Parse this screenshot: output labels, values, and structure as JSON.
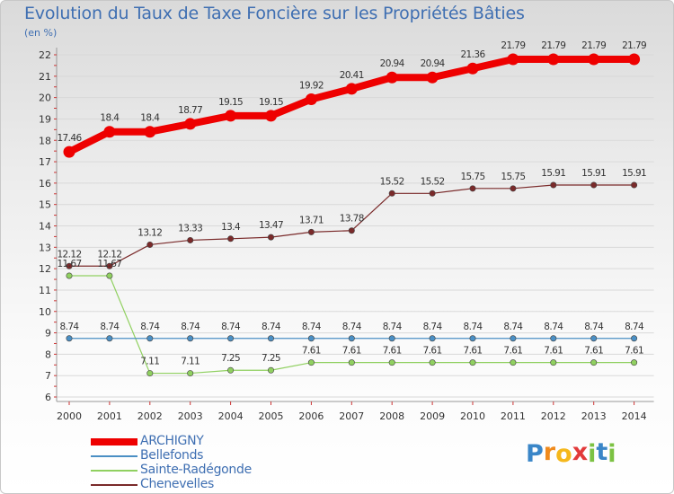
{
  "header": {
    "title": "Evolution du Taux de Taxe Foncière sur les Propriétés Bâties",
    "unit": "(en %)"
  },
  "logo": {
    "letters": [
      "P",
      "r",
      "o",
      "x",
      "i",
      "t",
      "i"
    ],
    "colors": [
      "#3a86c8",
      "#f08a1c",
      "#f5b81c",
      "#e23a3a",
      "#7cc243",
      "#3a86c8",
      "#7cc243"
    ]
  },
  "chart_data": {
    "type": "line",
    "title": "Evolution du Taux de Taxe Foncière sur les Propriétés Bâties",
    "ylabel": "(en %)",
    "xlabel": "",
    "ylim": [
      6,
      22
    ],
    "yticks": [
      "6",
      "7",
      "8",
      "9",
      "10",
      "11",
      "12",
      "13",
      "14",
      "15",
      "16",
      "17",
      "18",
      "19",
      "20",
      "21",
      "22"
    ],
    "categories": [
      "2000",
      "2001",
      "2002",
      "2003",
      "2004",
      "2005",
      "2006",
      "2007",
      "2008",
      "2009",
      "2010",
      "2011",
      "2012",
      "2013",
      "2014"
    ],
    "series": [
      {
        "name": "ARCHIGNY",
        "color": "#ee0000",
        "values": [
          17.46,
          18.4,
          18.4,
          18.77,
          19.15,
          19.15,
          19.92,
          20.41,
          20.94,
          20.94,
          21.36,
          21.79,
          21.79,
          21.79,
          21.79
        ],
        "labels": [
          "17.46",
          "18.4",
          "18.4",
          "18.77",
          "19.15",
          "19.15",
          "19.92",
          "20.41",
          "20.94",
          "20.94",
          "21.36",
          "21.79",
          "21.79",
          "21.79",
          "21.79"
        ]
      },
      {
        "name": "Bellefonds",
        "color": "#4a8fc4",
        "values": [
          8.74,
          8.74,
          8.74,
          8.74,
          8.74,
          8.74,
          8.74,
          8.74,
          8.74,
          8.74,
          8.74,
          8.74,
          8.74,
          8.74,
          8.74
        ],
        "labels": [
          "8.74",
          "8.74",
          "8.74",
          "8.74",
          "8.74",
          "8.74",
          "8.74",
          "8.74",
          "8.74",
          "8.74",
          "8.74",
          "8.74",
          "8.74",
          "8.74",
          "8.74"
        ]
      },
      {
        "name": "Sainte-Radégonde",
        "color": "#90d060",
        "values": [
          11.67,
          11.67,
          7.11,
          7.11,
          7.25,
          7.25,
          7.61,
          7.61,
          7.61,
          7.61,
          7.61,
          7.61,
          7.61,
          7.61,
          7.61
        ],
        "labels": [
          "11.67",
          "11.67",
          "7.11",
          "7.11",
          "7.25",
          "7.25",
          "7.61",
          "7.61",
          "7.61",
          "7.61",
          "7.61",
          "7.61",
          "7.61",
          "7.61",
          "7.61"
        ]
      },
      {
        "name": "Chenevelles",
        "color": "#7a2a2a",
        "values": [
          12.12,
          12.12,
          13.12,
          13.33,
          13.4,
          13.47,
          13.71,
          13.78,
          15.52,
          15.52,
          15.75,
          15.75,
          15.91,
          15.91,
          15.91
        ],
        "labels": [
          "12.12",
          "12.12",
          "13.12",
          "13.33",
          "13.4",
          "13.47",
          "13.71",
          "13.78",
          "15.52",
          "15.52",
          "15.75",
          "15.75",
          "15.91",
          "15.91",
          "15.91"
        ]
      }
    ]
  }
}
